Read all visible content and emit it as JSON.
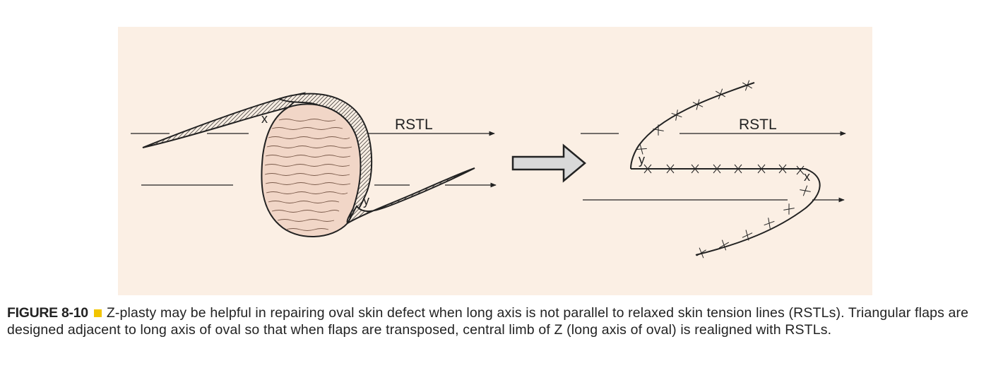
{
  "figure": {
    "left_panel": {
      "rstl_label": "RSTL",
      "point_x_label": "x",
      "point_y_label": "y"
    },
    "right_panel": {
      "rstl_label": "RSTL",
      "point_x_label": "x",
      "point_y_label": "y"
    },
    "colors": {
      "panel_background": "#fbefe4",
      "defect_fill": "#f1d6c7",
      "line": "#222222",
      "caption_marker": "#f2c500"
    }
  },
  "caption": {
    "label": "FIGURE 8-10",
    "text": "Z-plasty may be helpful in repairing oval skin defect when long axis is not parallel to relaxed skin tension lines (RSTLs). Triangular flaps are designed adjacent to long axis of oval so that when flaps are transposed, central limb of Z (long axis of oval) is realigned with RSTLs."
  }
}
